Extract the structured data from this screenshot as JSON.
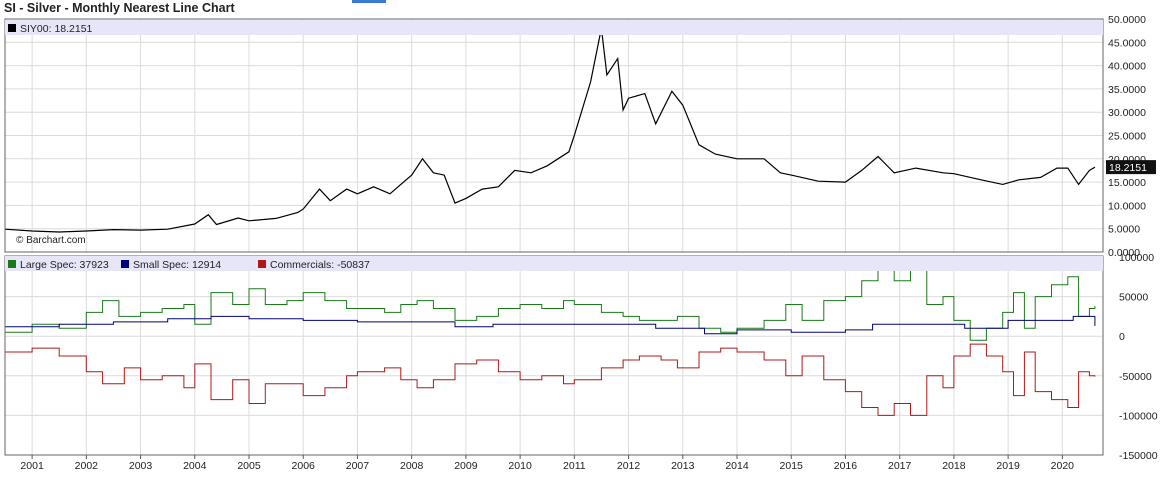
{
  "title": "SI - Silver - Monthly Nearest Line Chart",
  "watermark": "© Barchart.com",
  "chart_data": [
    {
      "type": "line",
      "legend": [
        {
          "name": "SIY00: 18.2151",
          "color": "#000000"
        }
      ],
      "last_value_label": "18.2151",
      "ylim": [
        0,
        50
      ],
      "y_ticks": [
        "50.0000",
        "45.0000",
        "40.0000",
        "35.0000",
        "30.0000",
        "25.0000",
        "20.0000",
        "15.0000",
        "10.0000",
        "5.0000",
        "0.0000"
      ],
      "x_range": [
        2000.5,
        2020.75
      ],
      "series": [
        {
          "color": "#000000",
          "points": [
            [
              2000.5,
              4.9
            ],
            [
              2001.0,
              4.5
            ],
            [
              2001.5,
              4.3
            ],
            [
              2002.0,
              4.5
            ],
            [
              2002.5,
              4.8
            ],
            [
              2003.0,
              4.7
            ],
            [
              2003.5,
              4.9
            ],
            [
              2004.0,
              6.0
            ],
            [
              2004.25,
              8.0
            ],
            [
              2004.4,
              5.9
            ],
            [
              2004.8,
              7.3
            ],
            [
              2005.0,
              6.7
            ],
            [
              2005.5,
              7.2
            ],
            [
              2005.9,
              8.5
            ],
            [
              2006.0,
              9.2
            ],
            [
              2006.3,
              13.5
            ],
            [
              2006.5,
              11.0
            ],
            [
              2006.8,
              13.5
            ],
            [
              2007.0,
              12.5
            ],
            [
              2007.3,
              14.0
            ],
            [
              2007.6,
              12.5
            ],
            [
              2007.8,
              14.5
            ],
            [
              2008.0,
              16.5
            ],
            [
              2008.2,
              20.0
            ],
            [
              2008.4,
              17.0
            ],
            [
              2008.6,
              16.5
            ],
            [
              2008.8,
              10.5
            ],
            [
              2009.0,
              11.5
            ],
            [
              2009.3,
              13.5
            ],
            [
              2009.6,
              14.0
            ],
            [
              2009.9,
              17.5
            ],
            [
              2010.2,
              17.0
            ],
            [
              2010.5,
              18.5
            ],
            [
              2010.9,
              21.5
            ],
            [
              2011.0,
              25.0
            ],
            [
              2011.3,
              36.5
            ],
            [
              2011.5,
              48.0
            ],
            [
              2011.6,
              38.0
            ],
            [
              2011.8,
              41.5
            ],
            [
              2011.9,
              30.5
            ],
            [
              2012.0,
              33.0
            ],
            [
              2012.3,
              34.0
            ],
            [
              2012.5,
              27.5
            ],
            [
              2012.8,
              34.5
            ],
            [
              2013.0,
              31.5
            ],
            [
              2013.3,
              23.0
            ],
            [
              2013.6,
              21.0
            ],
            [
              2014.0,
              20.0
            ],
            [
              2014.5,
              20.0
            ],
            [
              2014.8,
              17.0
            ],
            [
              2015.0,
              16.5
            ],
            [
              2015.5,
              15.2
            ],
            [
              2016.0,
              15.0
            ],
            [
              2016.3,
              17.5
            ],
            [
              2016.6,
              20.5
            ],
            [
              2016.9,
              17.0
            ],
            [
              2017.3,
              18.0
            ],
            [
              2017.8,
              17.0
            ],
            [
              2018.0,
              16.8
            ],
            [
              2018.5,
              15.5
            ],
            [
              2018.9,
              14.5
            ],
            [
              2019.2,
              15.5
            ],
            [
              2019.6,
              16.0
            ],
            [
              2019.9,
              18.0
            ],
            [
              2020.1,
              18.0
            ],
            [
              2020.3,
              14.5
            ],
            [
              2020.5,
              17.5
            ],
            [
              2020.6,
              18.2
            ]
          ]
        }
      ]
    },
    {
      "type": "line",
      "legend": [
        {
          "name": "Large Spec: 37923",
          "color": "#1a7a1a"
        },
        {
          "name": "Small Spec: 12914",
          "color": "#00007a"
        },
        {
          "name": "Commercials: -50837",
          "color": "#b01818"
        }
      ],
      "ylim": [
        -150000,
        100000
      ],
      "y_ticks": [
        "100000",
        "50000",
        "0",
        "-50000",
        "-100000",
        "-150000"
      ],
      "x_range": [
        2000.5,
        2020.75
      ],
      "x_ticks": [
        "2001",
        "2002",
        "2003",
        "2004",
        "2005",
        "2006",
        "2007",
        "2008",
        "2009",
        "2010",
        "2011",
        "2012",
        "2013",
        "2014",
        "2015",
        "2016",
        "2017",
        "2018",
        "2019",
        "2020"
      ],
      "series": [
        {
          "name": "Large Spec",
          "color": "#1a7a1a",
          "points": [
            [
              2000.5,
              5000
            ],
            [
              2001.0,
              15000
            ],
            [
              2001.5,
              10000
            ],
            [
              2002.0,
              30000
            ],
            [
              2002.3,
              45000
            ],
            [
              2002.6,
              25000
            ],
            [
              2003.0,
              30000
            ],
            [
              2003.4,
              35000
            ],
            [
              2003.8,
              40000
            ],
            [
              2004.0,
              15000
            ],
            [
              2004.3,
              55000
            ],
            [
              2004.7,
              40000
            ],
            [
              2005.0,
              60000
            ],
            [
              2005.3,
              40000
            ],
            [
              2005.7,
              45000
            ],
            [
              2006.0,
              55000
            ],
            [
              2006.4,
              45000
            ],
            [
              2006.8,
              35000
            ],
            [
              2007.0,
              35000
            ],
            [
              2007.5,
              30000
            ],
            [
              2007.8,
              40000
            ],
            [
              2008.1,
              45000
            ],
            [
              2008.4,
              35000
            ],
            [
              2008.8,
              20000
            ],
            [
              2009.2,
              25000
            ],
            [
              2009.6,
              35000
            ],
            [
              2010.0,
              40000
            ],
            [
              2010.4,
              35000
            ],
            [
              2010.8,
              45000
            ],
            [
              2011.0,
              40000
            ],
            [
              2011.5,
              30000
            ],
            [
              2011.9,
              25000
            ],
            [
              2012.2,
              20000
            ],
            [
              2012.6,
              20000
            ],
            [
              2012.9,
              25000
            ],
            [
              2013.3,
              10000
            ],
            [
              2013.7,
              5000
            ],
            [
              2014.0,
              10000
            ],
            [
              2014.5,
              20000
            ],
            [
              2014.9,
              40000
            ],
            [
              2015.2,
              20000
            ],
            [
              2015.6,
              45000
            ],
            [
              2016.0,
              50000
            ],
            [
              2016.3,
              70000
            ],
            [
              2016.6,
              90000
            ],
            [
              2016.9,
              70000
            ],
            [
              2017.2,
              85000
            ],
            [
              2017.5,
              40000
            ],
            [
              2017.8,
              50000
            ],
            [
              2018.0,
              20000
            ],
            [
              2018.3,
              -5000
            ],
            [
              2018.6,
              10000
            ],
            [
              2018.9,
              30000
            ],
            [
              2019.1,
              55000
            ],
            [
              2019.3,
              10000
            ],
            [
              2019.5,
              50000
            ],
            [
              2019.8,
              65000
            ],
            [
              2020.1,
              75000
            ],
            [
              2020.3,
              25000
            ],
            [
              2020.5,
              35000
            ],
            [
              2020.6,
              38000
            ]
          ]
        },
        {
          "name": "Small Spec",
          "color": "#00007a",
          "points": [
            [
              2000.5,
              12000
            ],
            [
              2001.5,
              15000
            ],
            [
              2002.5,
              18000
            ],
            [
              2003.5,
              22000
            ],
            [
              2004.3,
              25000
            ],
            [
              2005.0,
              22000
            ],
            [
              2006.0,
              20000
            ],
            [
              2007.0,
              18000
            ],
            [
              2008.0,
              18000
            ],
            [
              2008.8,
              12000
            ],
            [
              2009.5,
              15000
            ],
            [
              2010.5,
              15000
            ],
            [
              2011.5,
              15000
            ],
            [
              2012.5,
              10000
            ],
            [
              2013.4,
              3000
            ],
            [
              2014.0,
              8000
            ],
            [
              2015.0,
              5000
            ],
            [
              2016.0,
              8000
            ],
            [
              2016.5,
              15000
            ],
            [
              2017.5,
              15000
            ],
            [
              2018.2,
              10000
            ],
            [
              2019.0,
              20000
            ],
            [
              2019.8,
              20000
            ],
            [
              2020.2,
              25000
            ],
            [
              2020.6,
              13000
            ]
          ]
        },
        {
          "name": "Commercials",
          "color": "#b01818",
          "points": [
            [
              2000.5,
              -20000
            ],
            [
              2001.0,
              -15000
            ],
            [
              2001.5,
              -25000
            ],
            [
              2002.0,
              -45000
            ],
            [
              2002.3,
              -60000
            ],
            [
              2002.7,
              -40000
            ],
            [
              2003.0,
              -55000
            ],
            [
              2003.4,
              -50000
            ],
            [
              2003.8,
              -65000
            ],
            [
              2004.0,
              -35000
            ],
            [
              2004.3,
              -80000
            ],
            [
              2004.7,
              -55000
            ],
            [
              2005.0,
              -85000
            ],
            [
              2005.3,
              -60000
            ],
            [
              2005.7,
              -60000
            ],
            [
              2006.0,
              -75000
            ],
            [
              2006.4,
              -65000
            ],
            [
              2006.8,
              -50000
            ],
            [
              2007.0,
              -45000
            ],
            [
              2007.5,
              -40000
            ],
            [
              2007.8,
              -55000
            ],
            [
              2008.1,
              -65000
            ],
            [
              2008.4,
              -55000
            ],
            [
              2008.8,
              -35000
            ],
            [
              2009.2,
              -30000
            ],
            [
              2009.6,
              -45000
            ],
            [
              2010.0,
              -55000
            ],
            [
              2010.4,
              -50000
            ],
            [
              2010.8,
              -60000
            ],
            [
              2011.0,
              -55000
            ],
            [
              2011.5,
              -40000
            ],
            [
              2011.9,
              -30000
            ],
            [
              2012.2,
              -25000
            ],
            [
              2012.6,
              -30000
            ],
            [
              2012.9,
              -40000
            ],
            [
              2013.3,
              -20000
            ],
            [
              2013.7,
              -15000
            ],
            [
              2014.0,
              -20000
            ],
            [
              2014.5,
              -30000
            ],
            [
              2014.9,
              -50000
            ],
            [
              2015.2,
              -25000
            ],
            [
              2015.6,
              -55000
            ],
            [
              2016.0,
              -70000
            ],
            [
              2016.3,
              -90000
            ],
            [
              2016.6,
              -100000
            ],
            [
              2016.9,
              -85000
            ],
            [
              2017.2,
              -100000
            ],
            [
              2017.5,
              -50000
            ],
            [
              2017.8,
              -65000
            ],
            [
              2018.0,
              -25000
            ],
            [
              2018.3,
              -10000
            ],
            [
              2018.6,
              -25000
            ],
            [
              2018.9,
              -45000
            ],
            [
              2019.1,
              -75000
            ],
            [
              2019.3,
              -20000
            ],
            [
              2019.5,
              -70000
            ],
            [
              2019.8,
              -80000
            ],
            [
              2020.1,
              -90000
            ],
            [
              2020.3,
              -45000
            ],
            [
              2020.5,
              -50000
            ],
            [
              2020.6,
              -51000
            ]
          ]
        }
      ]
    }
  ]
}
